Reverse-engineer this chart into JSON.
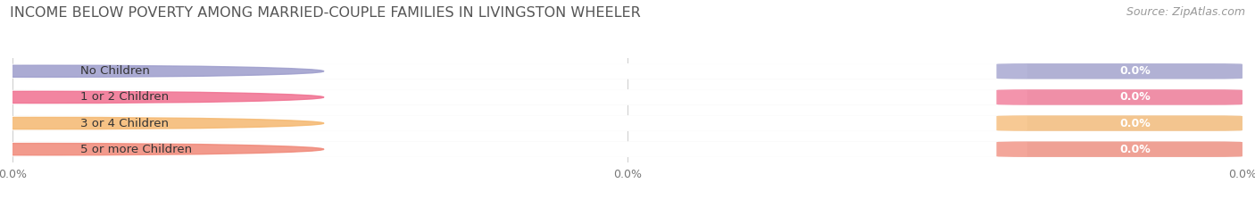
{
  "title": "INCOME BELOW POVERTY AMONG MARRIED-COUPLE FAMILIES IN LIVINGSTON WHEELER",
  "source": "Source: ZipAtlas.com",
  "categories": [
    "No Children",
    "1 or 2 Children",
    "3 or 4 Children",
    "5 or more Children"
  ],
  "values": [
    0.0,
    0.0,
    0.0,
    0.0
  ],
  "bar_colors": [
    "#9d9dcc",
    "#f07090",
    "#f5b870",
    "#f08878"
  ],
  "background_color": "#ffffff",
  "bar_bg_color": "#eeeeee",
  "title_fontsize": 11.5,
  "source_fontsize": 9,
  "tick_label_fontsize": 9,
  "bar_label_fontsize": 9,
  "category_fontsize": 9.5,
  "figsize": [
    14.06,
    2.33
  ],
  "dpi": 100,
  "xtick_positions": [
    0.0,
    0.5,
    1.0
  ],
  "xtick_labels": [
    "0.0%",
    "0.0%",
    "0.0%"
  ]
}
